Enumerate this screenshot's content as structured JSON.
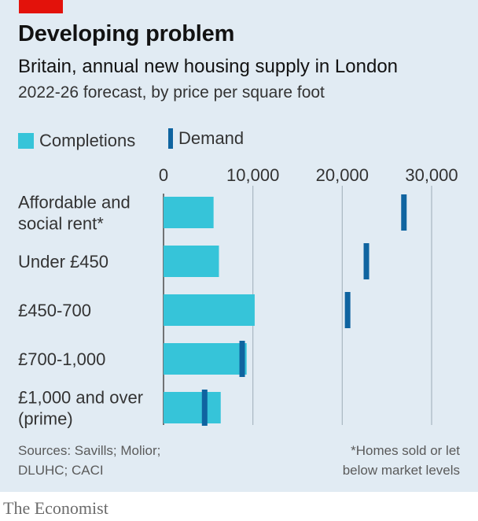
{
  "header": {
    "title": "Developing problem",
    "subtitle": "Britain, annual new housing supply in London",
    "subtitle2": "2022-26 forecast, by price per square foot"
  },
  "colors": {
    "brand_red": "#e3120b",
    "completions": "#36c4d9",
    "demand": "#0f64a0",
    "grid": "#a8b6c1",
    "text": "#333333"
  },
  "legend": {
    "completions": "Completions",
    "demand": "Demand"
  },
  "chart_data": {
    "type": "bar",
    "orientation": "horizontal",
    "categories": [
      [
        "Affordable and",
        "social rent*"
      ],
      [
        "Under £450"
      ],
      [
        "£450-700"
      ],
      [
        "£700-1,000"
      ],
      [
        "£1,000 and over",
        "(prime)"
      ]
    ],
    "series": [
      {
        "name": "Completions",
        "kind": "bar",
        "values": [
          5600,
          6200,
          10200,
          9300,
          6400
        ]
      },
      {
        "name": "Demand",
        "kind": "marker",
        "values": [
          26900,
          22700,
          20600,
          8800,
          4600
        ]
      }
    ],
    "xlim": [
      0,
      30000
    ],
    "xticks": [
      0,
      10000,
      20000,
      30000
    ],
    "xtick_labels": [
      "0",
      "10,000",
      "20,000",
      "30,000"
    ],
    "axis_position": "top",
    "grid": true
  },
  "footer": {
    "source_lines": [
      "Sources: Savills; Molior;",
      "DLUHC; CACI"
    ],
    "note_lines": [
      "*Homes sold or let",
      "below market levels"
    ]
  },
  "brand": "The Economist"
}
